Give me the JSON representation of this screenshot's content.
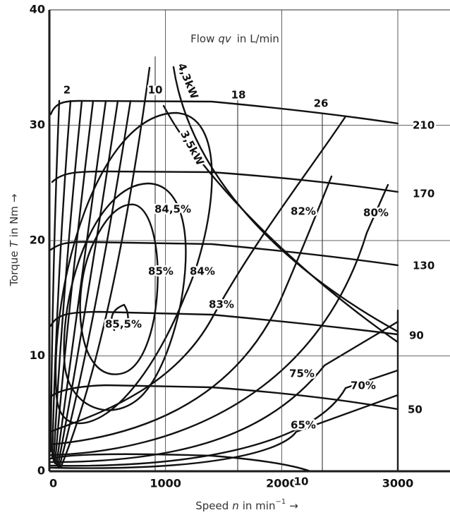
{
  "chart_data": {
    "type": "contour",
    "title": {
      "prefix": "Flow",
      "symbol": "qv",
      "suffix": "in L/min"
    },
    "xlabel": {
      "prefix": "Speed",
      "symbol": "n",
      "unit": "in min",
      "exponent": "−1",
      "arrow": "→"
    },
    "ylabel": {
      "prefix": "Torque",
      "symbol": "T",
      "suffix": "in Nm",
      "arrow": "→"
    },
    "xlim": [
      0,
      3000
    ],
    "xticks": [
      0,
      1000,
      2000,
      3000
    ],
    "ylim": [
      0,
      40
    ],
    "yticks": [
      0,
      10,
      20,
      30,
      40
    ],
    "grid": true,
    "annotations": [
      "2",
      "10",
      "18",
      "26",
      "4,3kW",
      "3,5kW",
      "84,5%",
      "82%",
      "80%",
      "85%",
      "84%",
      "83%",
      "85,5%",
      "75%",
      "70%",
      "65%",
      "10",
      "210",
      "170",
      "130",
      "90",
      "50"
    ]
  }
}
